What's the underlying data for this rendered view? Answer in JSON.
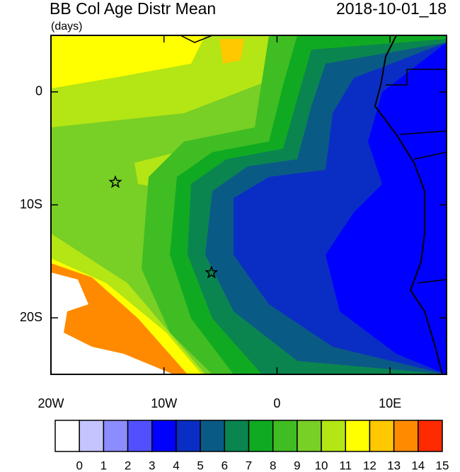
{
  "chart_data": {
    "type": "contour-map",
    "title": "BB Col Age Distr Mean",
    "units": "(days)",
    "time": "2018-10-01_18",
    "xlim": [
      -20,
      15
    ],
    "ylim": [
      -25,
      5
    ],
    "xticks": [
      {
        "value": -20,
        "label": "20W"
      },
      {
        "value": -10,
        "label": "10W"
      },
      0,
      {
        "value": 10,
        "label": "10E"
      }
    ],
    "yticks": [
      0,
      {
        "value": -10,
        "label": "10S"
      },
      {
        "value": -20,
        "label": "20S"
      }
    ],
    "colorbar": {
      "levels": [
        0,
        1,
        2,
        3,
        4,
        5,
        6,
        7,
        8,
        9,
        10,
        11,
        12,
        13,
        14,
        15
      ],
      "colors": [
        "#ffffff",
        "#c4c4ff",
        "#8c8cff",
        "#5050ff",
        "#0000ff",
        "#0a2ec4",
        "#0a5a86",
        "#0a8550",
        "#10aa22",
        "#40bd22",
        "#78cf26",
        "#b4e514",
        "#ffff00",
        "#ffc800",
        "#ff8a00",
        "#ff2a00"
      ]
    },
    "markers": {
      "x": [
        -14.3,
        -5.8
      ],
      "y": [
        -8,
        -16
      ]
    }
  }
}
